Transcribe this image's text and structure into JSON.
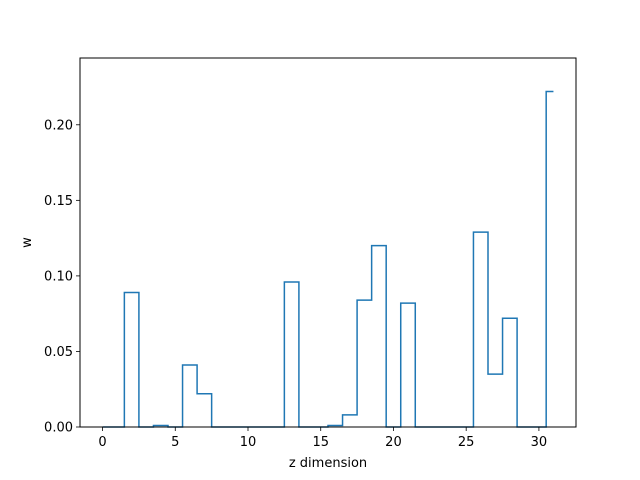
{
  "chart_data": {
    "type": "line",
    "drawstyle": "steps-mid",
    "title": "",
    "xlabel": "z dimension",
    "ylabel": "w",
    "xlim": [
      -1.55,
      32.55
    ],
    "ylim": [
      0,
      0.2442
    ],
    "xticks": [
      0,
      5,
      10,
      15,
      20,
      25,
      30
    ],
    "yticks": [
      0.0,
      0.05,
      0.1,
      0.15,
      0.2
    ],
    "xtick_labels": [
      "0",
      "5",
      "10",
      "15",
      "20",
      "25",
      "30"
    ],
    "ytick_labels": [
      "0.00",
      "0.05",
      "0.10",
      "0.15",
      "0.20"
    ],
    "grid": false,
    "legend": "none",
    "colors": {
      "series": "#1f77b4"
    },
    "series": [
      {
        "x": [
          0,
          1,
          2,
          3,
          4,
          5,
          6,
          7,
          8,
          9,
          10,
          11,
          12,
          13,
          14,
          15,
          16,
          17,
          18,
          19,
          20,
          21,
          22,
          23,
          24,
          25,
          26,
          27,
          28,
          29,
          30,
          31
        ],
        "values": [
          0,
          0,
          0.089,
          0,
          0.001,
          0,
          0.041,
          0.022,
          0,
          0,
          0,
          0,
          0,
          0.096,
          0,
          0,
          0.001,
          0.008,
          0.084,
          0.12,
          0,
          0.082,
          0,
          0,
          0,
          0,
          0.129,
          0.035,
          0.072,
          0,
          0,
          0.222
        ]
      }
    ]
  }
}
